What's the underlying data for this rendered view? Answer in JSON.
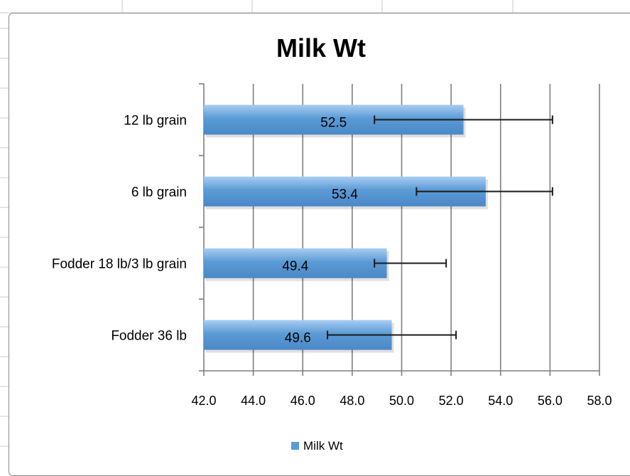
{
  "colors": {
    "bar_fill": "#5b9bd5",
    "bar_highlight": "#a9cdf3",
    "grid": "#7f7f7f",
    "axis": "#7f7f7f",
    "error_bar": "#1a1a1a",
    "text": "#000000",
    "sheet_grid": "#c8c8c8"
  },
  "chart_data": {
    "type": "bar",
    "orientation": "horizontal",
    "title": "Milk Wt",
    "categories": [
      "12 lb grain",
      "6 lb grain",
      "Fodder 18 lb/3 lb grain",
      "Fodder 36 lb"
    ],
    "series": [
      {
        "name": "Milk Wt",
        "values": [
          52.5,
          53.4,
          49.4,
          49.6
        ],
        "data_labels": [
          "52.5",
          "53.4",
          "49.4",
          "49.6"
        ],
        "error_low": [
          48.9,
          50.6,
          48.9,
          47.0
        ],
        "error_high": [
          56.1,
          56.1,
          51.8,
          52.2
        ]
      }
    ],
    "xlim": [
      42.0,
      58.0
    ],
    "x_ticks": [
      "42.0",
      "44.0",
      "46.0",
      "48.0",
      "50.0",
      "52.0",
      "54.0",
      "56.0",
      "58.0"
    ],
    "x_tick_values": [
      42,
      44,
      46,
      48,
      50,
      52,
      54,
      56,
      58
    ],
    "grid": "vertical",
    "legend": {
      "position": "bottom",
      "entries": [
        "Milk Wt"
      ]
    }
  }
}
